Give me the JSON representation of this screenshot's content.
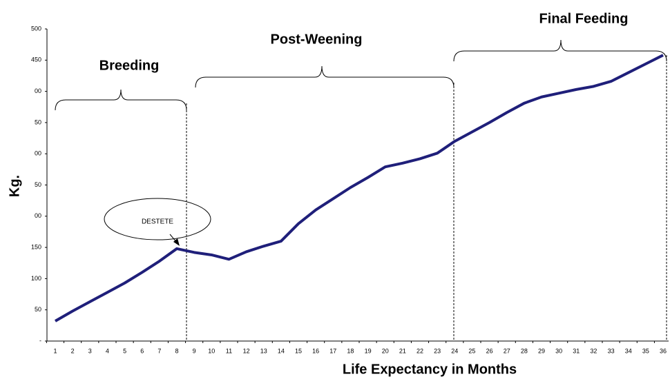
{
  "chart_data": {
    "type": "line",
    "x_label": "Life Expectancy in Months",
    "y_label": "Kg.",
    "annotations": [
      "Breeding",
      "Post-Weening",
      "Final Feeding",
      "DESTETE"
    ],
    "categories": [
      "1",
      "2",
      "3",
      "4",
      "5",
      "6",
      "7",
      "8",
      "9",
      "10",
      "11",
      "12",
      "13",
      "14",
      "15",
      "16",
      "17",
      "18",
      "19",
      "20",
      "21",
      "22",
      "23",
      "24",
      "25",
      "26",
      "27",
      "28",
      "29",
      "30",
      "31",
      "32",
      "33",
      "34",
      "35",
      "36"
    ],
    "series": [
      {
        "color": "#1f1f7a",
        "values": [
          32,
          48,
          63,
          78,
          93,
          110,
          128,
          148,
          142,
          138,
          131,
          143,
          152,
          160,
          188,
          210,
          228,
          246,
          262,
          279,
          285,
          292,
          301,
          320,
          335,
          350,
          366,
          381,
          391,
          397,
          403,
          408,
          416,
          430,
          444,
          458
        ]
      }
    ],
    "ylim": [
      0,
      500
    ],
    "yticks": [
      {
        "value": 0,
        "label": "-"
      },
      50,
      100,
      150,
      {
        "value": 200,
        "label": "00"
      },
      {
        "value": 250,
        "label": "50"
      },
      {
        "value": 300,
        "label": "00"
      },
      {
        "value": 350,
        "label": "50"
      },
      {
        "value": 400,
        "label": "00"
      },
      450,
      500
    ],
    "grid": false
  }
}
